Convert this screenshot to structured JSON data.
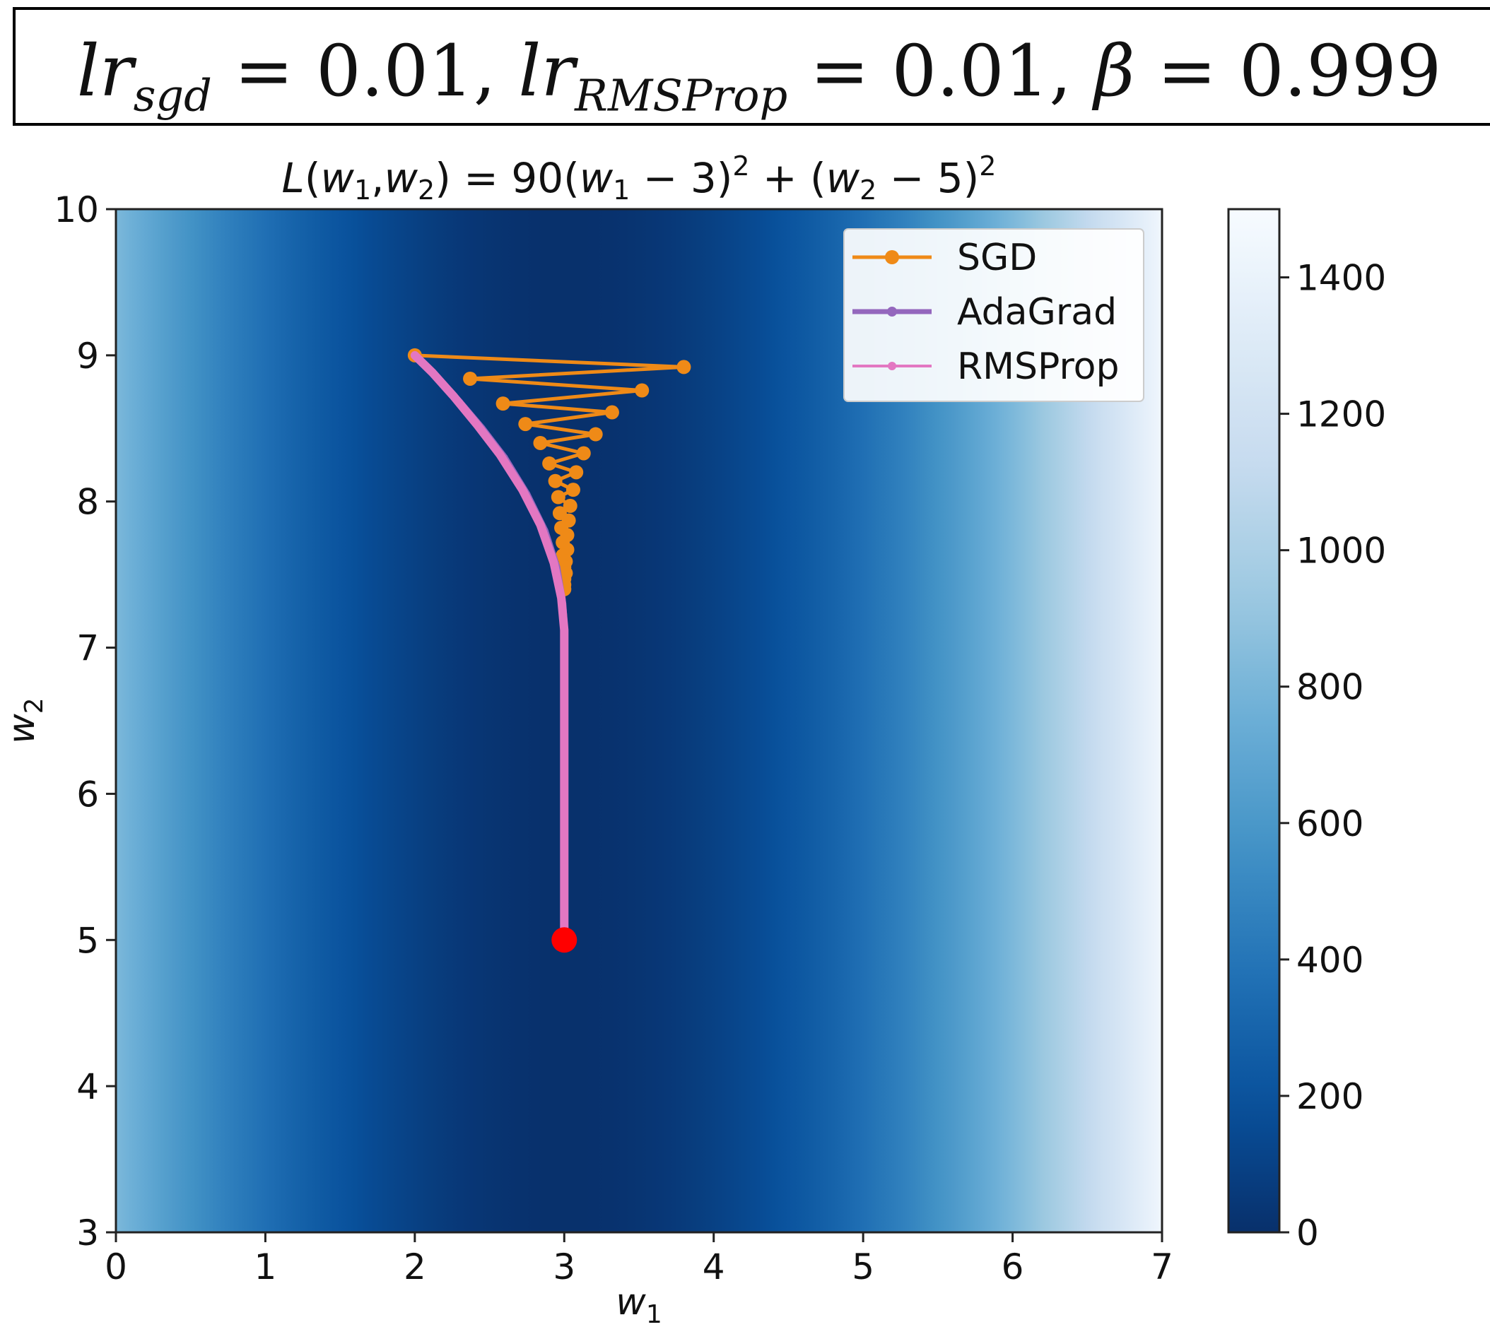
{
  "header": {
    "lr_sgd_sym": "lr",
    "lr_sgd_sub": "sgd",
    "lr_sgd_val": " = 0.01, ",
    "lr_rms_sym": "lr",
    "lr_rms_sub": "RMSProp",
    "lr_rms_val": " = 0.01,  ",
    "beta_sym": "β",
    "beta_val": " = 0.999"
  },
  "chart_data": {
    "type": "line",
    "title": "L(w1, w2) = 90(w1 − 3)^2 + (w2 − 5)^2",
    "xlabel": "w1",
    "ylabel": "w2",
    "xlim": [
      0,
      7
    ],
    "ylim": [
      3,
      10
    ],
    "xticks": [
      0,
      1,
      2,
      3,
      4,
      5,
      6,
      7
    ],
    "yticks": [
      3,
      4,
      5,
      6,
      7,
      8,
      9,
      10
    ],
    "background": {
      "type": "heatmap",
      "function": "90*(w1-3)^2 + (w2-5)^2",
      "colormap": "Blues_r",
      "colorbar_range": [
        0,
        1500
      ],
      "colorbar_ticks": [
        0,
        200,
        400,
        600,
        800,
        1000,
        1200,
        1400
      ]
    },
    "legend": {
      "position": "top-right",
      "entries": [
        "SGD",
        "AdaGrad",
        "RMSProp"
      ]
    },
    "series": [
      {
        "name": "SGD",
        "color": "#ef8a17",
        "marker": "circle",
        "points": [
          [
            2.0,
            9.0
          ],
          [
            3.8,
            8.92
          ],
          [
            2.37,
            8.84
          ],
          [
            3.52,
            8.76
          ],
          [
            2.59,
            8.67
          ],
          [
            3.32,
            8.61
          ],
          [
            2.74,
            8.53
          ],
          [
            3.21,
            8.46
          ],
          [
            2.84,
            8.4
          ],
          [
            3.13,
            8.33
          ],
          [
            2.9,
            8.26
          ],
          [
            3.08,
            8.2
          ],
          [
            2.94,
            8.14
          ],
          [
            3.06,
            8.08
          ],
          [
            2.96,
            8.03
          ],
          [
            3.04,
            7.97
          ],
          [
            2.97,
            7.92
          ],
          [
            3.03,
            7.87
          ],
          [
            2.98,
            7.82
          ],
          [
            3.02,
            7.77
          ],
          [
            2.99,
            7.72
          ],
          [
            3.02,
            7.67
          ],
          [
            2.99,
            7.63
          ],
          [
            3.01,
            7.59
          ],
          [
            3.0,
            7.55
          ],
          [
            3.01,
            7.51
          ],
          [
            3.0,
            7.47
          ],
          [
            3.0,
            7.43
          ],
          [
            3.0,
            7.4
          ]
        ]
      },
      {
        "name": "AdaGrad",
        "color": "#9467bd",
        "marker": "circle",
        "points": [
          [
            2.0,
            9.0
          ],
          [
            2.15,
            8.85
          ],
          [
            2.3,
            8.68
          ],
          [
            2.45,
            8.5
          ],
          [
            2.6,
            8.3
          ],
          [
            2.75,
            8.05
          ],
          [
            2.87,
            7.8
          ],
          [
            2.95,
            7.55
          ],
          [
            2.99,
            7.3
          ],
          [
            3.0,
            7.15
          ]
        ]
      },
      {
        "name": "RMSProp",
        "color": "#e377c2",
        "marker": "pentagon",
        "points": [
          [
            2.0,
            9.0
          ],
          [
            2.12,
            8.88
          ],
          [
            2.26,
            8.72
          ],
          [
            2.42,
            8.52
          ],
          [
            2.57,
            8.32
          ],
          [
            2.72,
            8.08
          ],
          [
            2.84,
            7.84
          ],
          [
            2.93,
            7.58
          ],
          [
            2.98,
            7.34
          ],
          [
            3.0,
            7.12
          ],
          [
            3.0,
            6.5
          ],
          [
            3.0,
            6.0
          ],
          [
            3.0,
            5.5
          ],
          [
            3.0,
            5.0
          ]
        ]
      }
    ],
    "annotations": [
      {
        "type": "point",
        "x": 3.0,
        "y": 5.0,
        "color": "#ff0000",
        "label": "minimum"
      }
    ]
  },
  "colors": {
    "sgd": "#ef8a17",
    "adagrad": "#9467bd",
    "rmsprop": "#e377c2",
    "minimum": "#ff0000"
  }
}
